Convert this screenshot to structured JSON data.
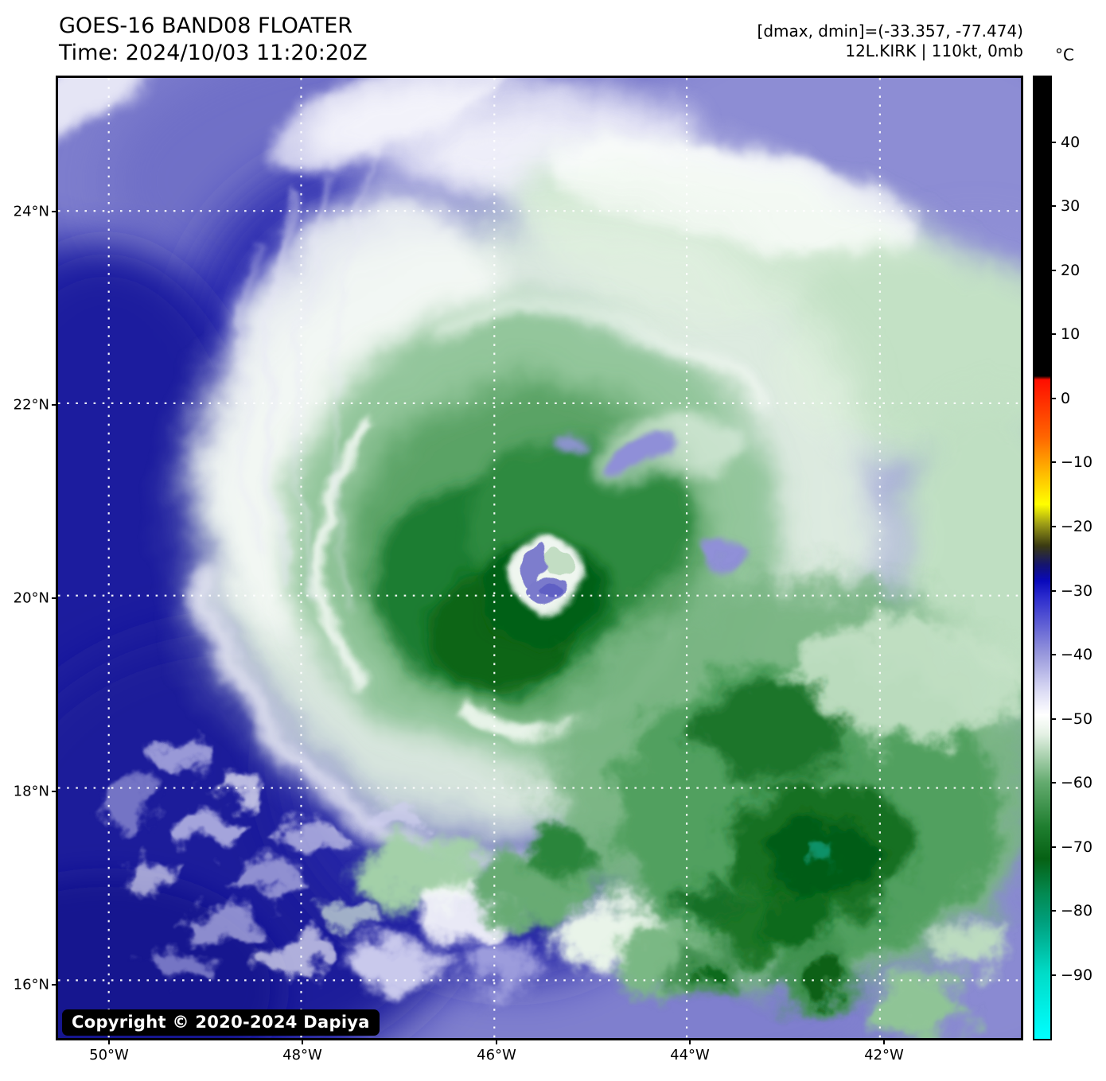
{
  "header": {
    "title": "GOES-16 BAND08 FLOATER",
    "time": "Time: 2024/10/03 11:20:20Z",
    "range_info": "[dmax, dmin]=(-33.357, -77.474)",
    "storm_info": "12L.KIRK | 110kt, 0mb"
  },
  "map": {
    "x_axis_labels": [
      "50°W",
      "48°W",
      "46°W",
      "44°W",
      "42°W"
    ],
    "y_axis_labels": [
      "24°N",
      "22°N",
      "20°N",
      "18°N",
      "16°N"
    ],
    "copyright": "Copyright © 2020-2024 Dapiya"
  },
  "colorbar": {
    "unit": "°C",
    "ticks": [
      {
        "label": "40",
        "value": 40
      },
      {
        "label": "30",
        "value": 30
      },
      {
        "label": "20",
        "value": 20
      },
      {
        "label": "10",
        "value": 10
      },
      {
        "label": "0",
        "value": 0
      },
      {
        "label": "−10",
        "value": -10
      },
      {
        "label": "−20",
        "value": -20
      },
      {
        "label": "−30",
        "value": -30
      },
      {
        "label": "−40",
        "value": -40
      },
      {
        "label": "−50",
        "value": -50
      },
      {
        "label": "−60",
        "value": -60
      },
      {
        "label": "−70",
        "value": -70
      },
      {
        "label": "−80",
        "value": -80
      },
      {
        "label": "−90",
        "value": -90
      }
    ],
    "gradient_stops": [
      {
        "value": 50.4,
        "color": "#000000"
      },
      {
        "value": 3.6,
        "color": "#000000"
      },
      {
        "value": 3.0,
        "color": "#ff0e00"
      },
      {
        "value": -6,
        "color": "#ff6600"
      },
      {
        "value": -12,
        "color": "#ffc000"
      },
      {
        "value": -16.5,
        "color": "#ffff00"
      },
      {
        "value": -19.5,
        "color": "#a0a016"
      },
      {
        "value": -23,
        "color": "#3a3a12"
      },
      {
        "value": -26,
        "color": "#141470"
      },
      {
        "value": -28.5,
        "color": "#0909bb"
      },
      {
        "value": -31,
        "color": "#2b2bcd"
      },
      {
        "value": -40,
        "color": "#9898dc"
      },
      {
        "value": -46,
        "color": "#dedef5"
      },
      {
        "value": -49.5,
        "color": "#ffffff"
      },
      {
        "value": -52.5,
        "color": "#e4f1e4"
      },
      {
        "value": -60,
        "color": "#64ab6f"
      },
      {
        "value": -67,
        "color": "#1f7e2f"
      },
      {
        "value": -72,
        "color": "#066114"
      },
      {
        "value": -77.5,
        "color": "#038a52"
      },
      {
        "value": -82,
        "color": "#00a07e"
      },
      {
        "value": -90,
        "color": "#00dcc8"
      },
      {
        "value": -100.2,
        "color": "#00ffff"
      }
    ]
  }
}
